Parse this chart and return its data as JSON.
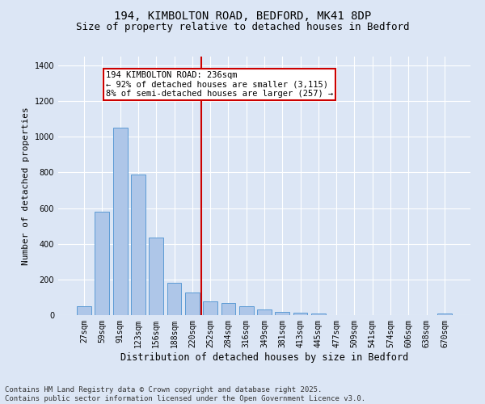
{
  "title_line1": "194, KIMBOLTON ROAD, BEDFORD, MK41 8DP",
  "title_line2": "Size of property relative to detached houses in Bedford",
  "xlabel": "Distribution of detached houses by size in Bedford",
  "ylabel": "Number of detached properties",
  "categories": [
    "27sqm",
    "59sqm",
    "91sqm",
    "123sqm",
    "156sqm",
    "188sqm",
    "220sqm",
    "252sqm",
    "284sqm",
    "316sqm",
    "349sqm",
    "381sqm",
    "413sqm",
    "445sqm",
    "477sqm",
    "509sqm",
    "541sqm",
    "574sqm",
    "606sqm",
    "638sqm",
    "670sqm"
  ],
  "values": [
    50,
    580,
    1050,
    790,
    435,
    180,
    125,
    75,
    70,
    50,
    30,
    20,
    12,
    7,
    0,
    0,
    0,
    0,
    0,
    0,
    10
  ],
  "bar_color": "#aec6e8",
  "bar_edge_color": "#5b9bd5",
  "vline_x_index": 7,
  "vline_color": "#cc0000",
  "annotation_text": "194 KIMBOLTON ROAD: 236sqm\n← 92% of detached houses are smaller (3,115)\n8% of semi-detached houses are larger (257) →",
  "annotation_box_color": "#cc0000",
  "ylim": [
    0,
    1450
  ],
  "yticks": [
    0,
    200,
    400,
    600,
    800,
    1000,
    1200,
    1400
  ],
  "bg_color": "#dce6f5",
  "plot_bg_color": "#dce6f5",
  "footer_line1": "Contains HM Land Registry data © Crown copyright and database right 2025.",
  "footer_line2": "Contains public sector information licensed under the Open Government Licence v3.0.",
  "grid_color": "#ffffff",
  "title_fontsize": 10,
  "subtitle_fontsize": 9,
  "tick_fontsize": 7,
  "ylabel_fontsize": 8,
  "xlabel_fontsize": 8.5,
  "footer_fontsize": 6.5,
  "annot_fontsize": 7.5
}
